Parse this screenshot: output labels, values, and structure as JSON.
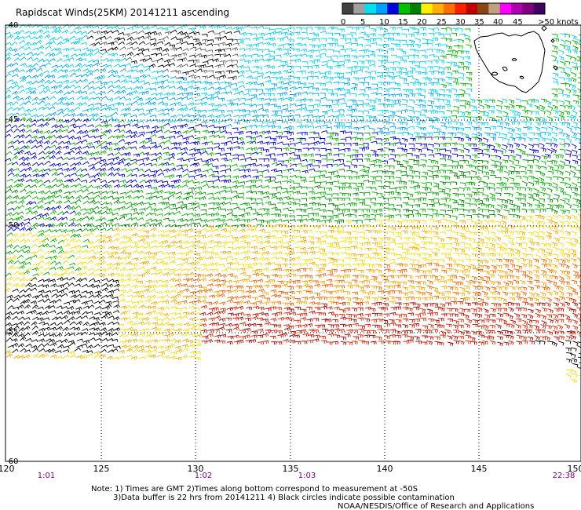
{
  "title": "Rapidscat Winds(25KM) 20141211 ascending",
  "scale": {
    "labels": [
      "0",
      "5",
      "10",
      "15",
      "20",
      "25",
      "30",
      "35",
      "40",
      "45",
      ">50 knots"
    ],
    "colors": [
      "#404040",
      "#a0a0a0",
      "#00e0f0",
      "#00a0ff",
      "#0000e0",
      "#00c000",
      "#008000",
      "#ffee00",
      "#ffb000",
      "#ff7000",
      "#ff2000",
      "#c00000",
      "#8b4513",
      "#c0a080",
      "#ff00ff",
      "#b000b0",
      "#800080",
      "#400060"
    ]
  },
  "lat_labels": [
    "-40",
    "-45",
    "-50",
    "-55",
    "-60"
  ],
  "lon_labels": [
    "120",
    "125",
    "130",
    "135",
    "140",
    "145",
    "150"
  ],
  "time_labels": [
    "1:01",
    "1:02",
    "1:03",
    "22:38"
  ],
  "notes": {
    "line1": "Note: 1) Times are GMT 2)Times along bottom correspond to measurement at -50S",
    "line2": "3)Data buffer is 22 hrs from 20141211 4) Black circles indicate possible contamination",
    "line3": "NOAA/NESDIS/Office of Research and Applications"
  },
  "colors": {
    "frame": "#000000",
    "grid": "#000000",
    "time_text": "#800080",
    "land_outline": "#000000"
  }
}
